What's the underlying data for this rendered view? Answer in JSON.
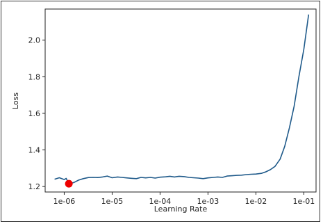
{
  "chart_data": {
    "type": "line",
    "title": "",
    "xlabel": "Learning Rate",
    "ylabel": "Loss",
    "x_scale": "log",
    "xlim": [
      4e-07,
      0.18
    ],
    "ylim": [
      1.17,
      2.17
    ],
    "xticks": [
      {
        "value": 1e-06,
        "label": "1e-06"
      },
      {
        "value": 1e-05,
        "label": "1e-05"
      },
      {
        "value": 0.0001,
        "label": "1e-04"
      },
      {
        "value": 0.001,
        "label": "1e-03"
      },
      {
        "value": 0.01,
        "label": "1e-02"
      },
      {
        "value": 0.1,
        "label": "1e-01"
      }
    ],
    "yticks": [
      {
        "value": 1.2,
        "label": "1.2"
      },
      {
        "value": 1.4,
        "label": "1.4"
      },
      {
        "value": 1.6,
        "label": "1.6"
      },
      {
        "value": 1.8,
        "label": "1.8"
      },
      {
        "value": 2.0,
        "label": "2.0"
      }
    ],
    "grid": false,
    "series": [
      {
        "color": "#1f5a8a",
        "points": [
          [
            6.3e-07,
            1.24
          ],
          [
            7.9e-07,
            1.248
          ],
          [
            1e-06,
            1.238
          ],
          [
            1.1e-06,
            1.244
          ],
          [
            1.25e-06,
            1.215
          ],
          [
            1.6e-06,
            1.222
          ],
          [
            2e-06,
            1.235
          ],
          [
            2.5e-06,
            1.243
          ],
          [
            3.2e-06,
            1.249
          ],
          [
            4e-06,
            1.25
          ],
          [
            5e-06,
            1.249
          ],
          [
            6.3e-06,
            1.252
          ],
          [
            7.9e-06,
            1.257
          ],
          [
            1e-05,
            1.248
          ],
          [
            1.3e-05,
            1.252
          ],
          [
            1.6e-05,
            1.25
          ],
          [
            2e-05,
            1.247
          ],
          [
            2.5e-05,
            1.245
          ],
          [
            3.2e-05,
            1.243
          ],
          [
            4e-05,
            1.25
          ],
          [
            5e-05,
            1.247
          ],
          [
            6.3e-05,
            1.25
          ],
          [
            7.9e-05,
            1.246
          ],
          [
            0.0001,
            1.251
          ],
          [
            0.00013,
            1.253
          ],
          [
            0.00016,
            1.256
          ],
          [
            0.0002,
            1.252
          ],
          [
            0.00025,
            1.256
          ],
          [
            0.00032,
            1.254
          ],
          [
            0.0004,
            1.25
          ],
          [
            0.0005,
            1.248
          ],
          [
            0.00063,
            1.246
          ],
          [
            0.00079,
            1.243
          ],
          [
            0.001,
            1.247
          ],
          [
            0.0013,
            1.25
          ],
          [
            0.0016,
            1.252
          ],
          [
            0.002,
            1.25
          ],
          [
            0.0025,
            1.257
          ],
          [
            0.0032,
            1.259
          ],
          [
            0.004,
            1.261
          ],
          [
            0.005,
            1.262
          ],
          [
            0.0063,
            1.265
          ],
          [
            0.0079,
            1.267
          ],
          [
            0.01,
            1.268
          ],
          [
            0.013,
            1.272
          ],
          [
            0.016,
            1.28
          ],
          [
            0.02,
            1.292
          ],
          [
            0.025,
            1.31
          ],
          [
            0.032,
            1.35
          ],
          [
            0.04,
            1.42
          ],
          [
            0.05,
            1.52
          ],
          [
            0.063,
            1.64
          ],
          [
            0.079,
            1.8
          ],
          [
            0.1,
            1.95
          ],
          [
            0.126,
            2.14
          ]
        ]
      }
    ],
    "marker": {
      "x": 1.25e-06,
      "y": 1.215,
      "color": "#ee0000"
    }
  }
}
